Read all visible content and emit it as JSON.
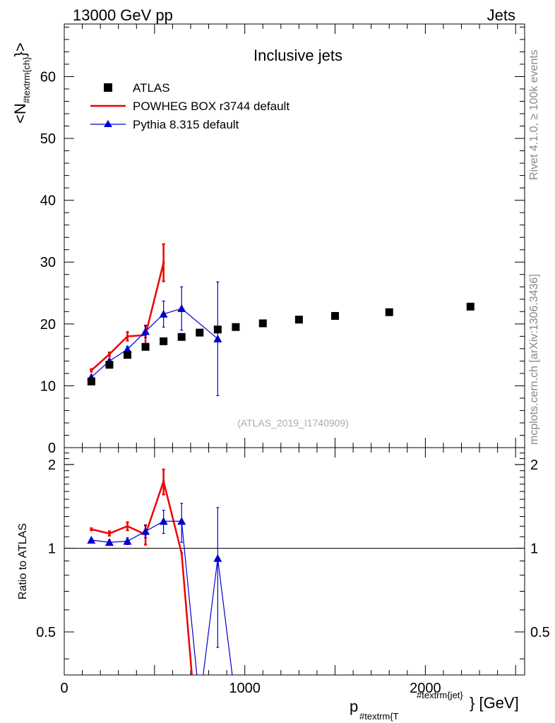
{
  "header": {
    "left": "13000 GeV pp",
    "right": "Jets"
  },
  "side_labels": {
    "rivet": "Rivet 4.1.0, ≥ 100k events",
    "mcplots": "mcplots.cern.ch [arXiv:1306.3436]"
  },
  "chart_data": {
    "type": "line",
    "title": "Inclusive jets",
    "watermark": "(ATLAS_2019_I1740909)",
    "xlabel_main": "p",
    "xlabel_sub": "#textrm{T",
    "xlabel_sup": "#textrm{jet}",
    "xlabel_suffix": "} [GeV]",
    "ylabel_main": "<N",
    "ylabel_sub": "#textrm{ch}",
    "ylabel_suffix": "}>",
    "ratio_ylabel": "Ratio to ATLAS",
    "xlim": [
      0,
      2550
    ],
    "ylim": [
      0,
      68.5
    ],
    "ratio_ylim": [
      0.35,
      2.3
    ],
    "x_ticks": [
      0,
      1000,
      2000
    ],
    "y_ticks": [
      0,
      10,
      20,
      30,
      40,
      50,
      60
    ],
    "ratio_ticks": [
      0.5,
      1,
      2
    ],
    "legend": [
      "ATLAS",
      "POWHEG BOX r3744 default",
      "Pythia 8.315 default"
    ],
    "series": [
      {
        "name": "ATLAS",
        "color": "#000000",
        "marker": "square",
        "x": [
          150,
          250,
          350,
          450,
          550,
          650,
          750,
          850,
          950,
          1100,
          1300,
          1500,
          1800,
          2250
        ],
        "y": [
          10.7,
          13.4,
          15.0,
          16.3,
          17.2,
          17.9,
          18.6,
          19.1,
          19.5,
          20.1,
          20.7,
          21.3,
          21.9,
          22.8
        ]
      },
      {
        "name": "POWHEG BOX r3744 default",
        "color": "#ee0000",
        "marker": "none",
        "x": [
          150,
          250,
          350,
          450,
          550
        ],
        "y": [
          12.5,
          15.1,
          18.0,
          18.2,
          29.9
        ],
        "yerr": [
          0.2,
          0.3,
          0.7,
          1.5,
          3.0
        ]
      },
      {
        "name": "Pythia 8.315 default",
        "color": "#0000cc",
        "marker": "triangle",
        "x": [
          150,
          250,
          350,
          450,
          550,
          650,
          850
        ],
        "y": [
          11.4,
          14.0,
          15.9,
          18.8,
          21.6,
          22.5,
          17.6
        ],
        "yerr": [
          0.2,
          0.3,
          0.5,
          1.0,
          2.1,
          3.5,
          9.2
        ]
      }
    ],
    "ratio_series": [
      {
        "name": "POWHEG BOX r3744 default",
        "color": "#ee0000",
        "x": [
          150,
          250,
          350,
          450,
          550,
          650,
          720
        ],
        "y": [
          1.17,
          1.13,
          1.2,
          1.12,
          1.74,
          0.96,
          0.0
        ],
        "yerr": [
          0.01,
          0.02,
          0.04,
          0.09,
          0.18,
          0,
          0
        ]
      },
      {
        "name": "Pythia 8.315 default",
        "color": "#0000cc",
        "x": [
          150,
          250,
          350,
          450,
          550,
          650,
          750,
          850,
          950
        ],
        "y": [
          1.07,
          1.05,
          1.06,
          1.15,
          1.25,
          1.25,
          0.0,
          0.92,
          0.0
        ],
        "yerr": [
          0.01,
          0.02,
          0.03,
          0.06,
          0.12,
          0.2,
          0,
          0.48,
          0
        ],
        "markers": [
          true,
          true,
          true,
          true,
          true,
          true,
          false,
          true,
          false
        ]
      }
    ]
  }
}
